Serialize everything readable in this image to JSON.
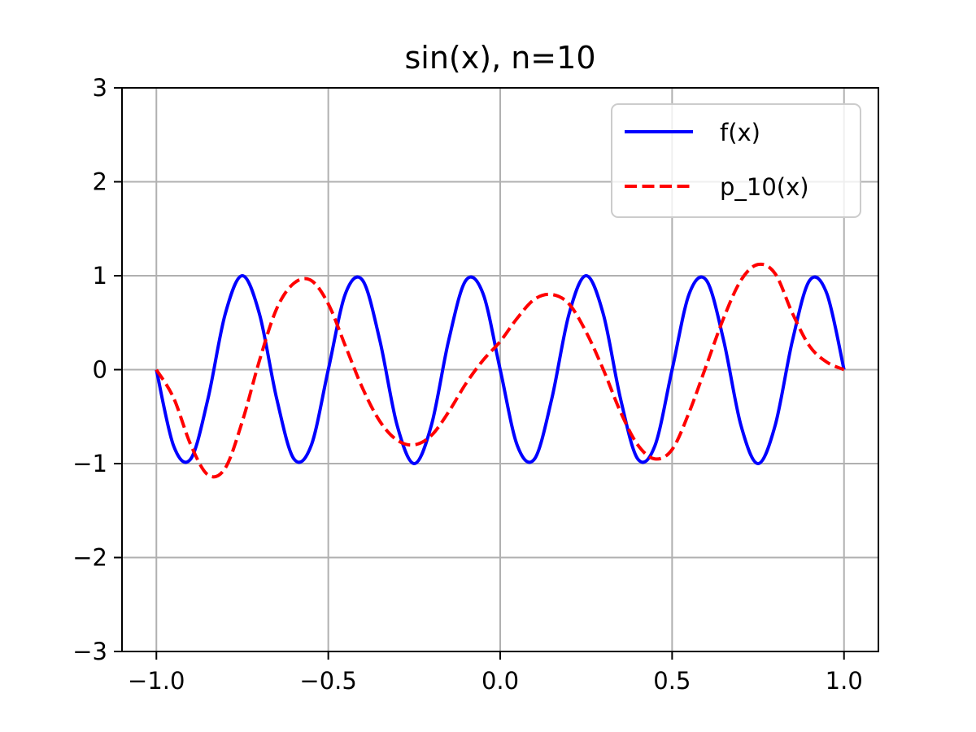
{
  "chart_data": {
    "type": "line",
    "title": "sin(x), n=10",
    "xlabel": "",
    "ylabel": "",
    "xlim": [
      -1.1,
      1.1
    ],
    "ylim": [
      -3,
      3
    ],
    "grid": true,
    "legend_position": "top-right",
    "x_ticks": [
      -1.0,
      -0.5,
      0.0,
      0.5,
      1.0
    ],
    "x_tick_labels": [
      "−1.0",
      "−0.5",
      "0.0",
      "0.5",
      "1.0"
    ],
    "y_ticks": [
      -3,
      -2,
      -1,
      0,
      1,
      2,
      3
    ],
    "y_tick_labels": [
      "−3",
      "−2",
      "−1",
      "0",
      "1",
      "2",
      "3"
    ],
    "series": [
      {
        "name": "f(x)",
        "color": "#0000ff",
        "style": "solid",
        "x": [
          -1.0,
          -0.95,
          -0.9,
          -0.85,
          -0.8,
          -0.75,
          -0.7,
          -0.65,
          -0.6,
          -0.55,
          -0.5,
          -0.45,
          -0.4,
          -0.35,
          -0.3,
          -0.25,
          -0.2,
          -0.15,
          -0.1,
          -0.05,
          0.0,
          0.05,
          0.1,
          0.15,
          0.2,
          0.25,
          0.3,
          0.35,
          0.4,
          0.45,
          0.5,
          0.55,
          0.6,
          0.65,
          0.7,
          0.75,
          0.8,
          0.85,
          0.9,
          0.95,
          1.0
        ],
        "y": [
          0.0,
          -0.81,
          -0.95,
          -0.31,
          0.59,
          1.0,
          0.59,
          -0.31,
          -0.95,
          -0.81,
          0.0,
          0.81,
          0.95,
          0.31,
          -0.59,
          -1.0,
          -0.59,
          0.31,
          0.95,
          0.81,
          0.0,
          -0.81,
          -0.95,
          -0.31,
          0.59,
          1.0,
          0.59,
          -0.31,
          -0.95,
          -0.81,
          0.0,
          0.81,
          0.95,
          0.31,
          -0.59,
          -1.0,
          -0.59,
          0.31,
          0.95,
          0.81,
          0.0
        ]
      },
      {
        "name": "p_10(x)",
        "color": "#ff0000",
        "style": "dashed",
        "x": [
          -1.0,
          -0.95,
          -0.9,
          -0.85,
          -0.8,
          -0.75,
          -0.7,
          -0.65,
          -0.6,
          -0.55,
          -0.5,
          -0.45,
          -0.4,
          -0.35,
          -0.3,
          -0.25,
          -0.2,
          -0.15,
          -0.1,
          -0.05,
          0.0,
          0.05,
          0.1,
          0.15,
          0.2,
          0.25,
          0.3,
          0.35,
          0.4,
          0.45,
          0.5,
          0.55,
          0.6,
          0.65,
          0.7,
          0.75,
          0.8,
          0.85,
          0.9,
          0.95,
          1.0
        ],
        "y": [
          0.0,
          -0.3,
          -0.8,
          -1.12,
          -1.05,
          -0.55,
          0.1,
          0.65,
          0.92,
          0.95,
          0.7,
          0.25,
          -0.2,
          -0.55,
          -0.75,
          -0.8,
          -0.7,
          -0.45,
          -0.15,
          0.1,
          0.3,
          0.55,
          0.75,
          0.8,
          0.7,
          0.4,
          0.0,
          -0.45,
          -0.8,
          -0.95,
          -0.85,
          -0.45,
          0.05,
          0.55,
          0.95,
          1.12,
          1.02,
          0.6,
          0.25,
          0.08,
          0.0
        ]
      }
    ]
  }
}
